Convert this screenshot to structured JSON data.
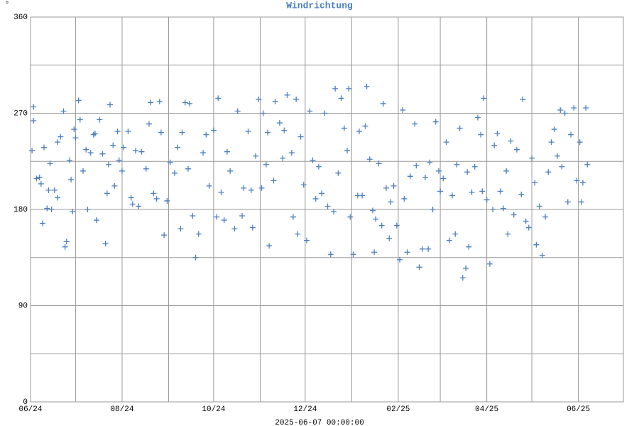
{
  "chart_data": {
    "type": "scatter",
    "title": "Windrichtung",
    "y_label": "°",
    "x_label": "2025-06-07 00:00:00",
    "color": "#4a7fc0",
    "marker": "+",
    "grid": true,
    "xlim": [
      0,
      395
    ],
    "xticks": [
      {
        "value": 0,
        "label": "06/24"
      },
      {
        "value": 61,
        "label": "08/24"
      },
      {
        "value": 122,
        "label": "10/24"
      },
      {
        "value": 183,
        "label": "12/24"
      },
      {
        "value": 245,
        "label": "02/25"
      },
      {
        "value": 304,
        "label": "04/25"
      },
      {
        "value": 365,
        "label": "06/25"
      }
    ],
    "xminorticks": [
      30,
      92,
      153,
      214,
      273,
      334
    ],
    "ylim": [
      0,
      360
    ],
    "yticks": [
      0,
      90,
      180,
      270,
      360
    ],
    "yminorticks": [
      45,
      135,
      225,
      315
    ],
    "x": [
      1,
      2,
      2,
      4,
      6,
      7,
      8,
      9,
      11,
      12,
      13,
      14,
      16,
      18,
      18,
      20,
      22,
      23,
      24,
      26,
      27,
      28,
      29,
      30,
      32,
      33,
      35,
      37,
      38,
      40,
      42,
      43,
      44,
      46,
      48,
      50,
      51,
      52,
      53,
      55,
      56,
      58,
      59,
      61,
      62,
      65,
      67,
      68,
      70,
      72,
      74,
      77,
      79,
      80,
      82,
      84,
      86,
      87,
      89,
      91,
      93,
      96,
      98,
      100,
      101,
      103,
      105,
      106,
      108,
      110,
      112,
      115,
      117,
      119,
      122,
      124,
      125,
      127,
      129,
      131,
      133,
      136,
      138,
      141,
      142,
      145,
      147,
      148,
      150,
      152,
      154,
      155,
      157,
      158,
      159,
      162,
      163,
      166,
      168,
      169,
      171,
      174,
      175,
      177,
      178,
      180,
      182,
      184,
      186,
      188,
      190,
      192,
      194,
      196,
      198,
      200,
      202,
      203,
      205,
      207,
      209,
      211,
      212,
      213,
      215,
      218,
      219,
      221,
      223,
      224,
      226,
      228,
      229,
      230,
      232,
      234,
      235,
      237,
      239,
      240,
      242,
      244,
      246,
      248,
      249,
      251,
      253,
      256,
      257,
      259,
      261,
      263,
      265,
      266,
      268,
      270,
      272,
      273,
      275,
      277,
      279,
      281,
      283,
      284,
      286,
      288,
      290,
      291,
      292,
      294,
      296,
      298,
      300,
      301,
      302,
      304,
      306,
      308,
      309,
      311,
      313,
      315,
      317,
      318,
      320,
      322,
      324,
      327,
      328,
      330,
      332,
      334,
      336,
      337,
      339,
      341,
      343,
      345,
      347,
      349,
      351,
      353,
      354,
      356,
      358,
      360,
      362,
      364,
      366,
      367,
      368,
      370,
      371
    ],
    "values": [
      235,
      276,
      263,
      209,
      210,
      204,
      167,
      238,
      181,
      198,
      223,
      180,
      198,
      191,
      243,
      248,
      272,
      145,
      150,
      226,
      208,
      178,
      255,
      247,
      282,
      264,
      216,
      236,
      180,
      233,
      250,
      251,
      170,
      264,
      232,
      148,
      195,
      222,
      278,
      240,
      202,
      253,
      226,
      216,
      238,
      253,
      191,
      185,
      235,
      183,
      234,
      218,
      260,
      280,
      195,
      190,
      281,
      252,
      156,
      188,
      224,
      214,
      238,
      162,
      252,
      280,
      218,
      279,
      174,
      135,
      157,
      233,
      250,
      202,
      254,
      173,
      284,
      196,
      170,
      234,
      216,
      162,
      272,
      174,
      200,
      253,
      198,
      163,
      230,
      283,
      200,
      270,
      222,
      252,
      146,
      207,
      281,
      261,
      228,
      254,
      287,
      233,
      173,
      283,
      157,
      248,
      203,
      151,
      272,
      226,
      190,
      220,
      195,
      270,
      183,
      138,
      178,
      293,
      214,
      284,
      256,
      235,
      293,
      173,
      138,
      193,
      253,
      193,
      258,
      295,
      227,
      179,
      140,
      171,
      223,
      165,
      279,
      200,
      153,
      187,
      202,
      165,
      133,
      273,
      190,
      140,
      211,
      260,
      221,
      126,
      143,
      210,
      143,
      224,
      180,
      262,
      216,
      197,
      209,
      243,
      151,
      193,
      157,
      222,
      256,
      116,
      125,
      215,
      145,
      196,
      220,
      266,
      250,
      197,
      284,
      189,
      129,
      180,
      240,
      251,
      197,
      181,
      216,
      157,
      244,
      175,
      236,
      194,
      283,
      169,
      163,
      228,
      205,
      147,
      183,
      137,
      173,
      215,
      243,
      255,
      230,
      273,
      220,
      270,
      187,
      250,
      275,
      207,
      243,
      187,
      205,
      275,
      222
    ]
  }
}
